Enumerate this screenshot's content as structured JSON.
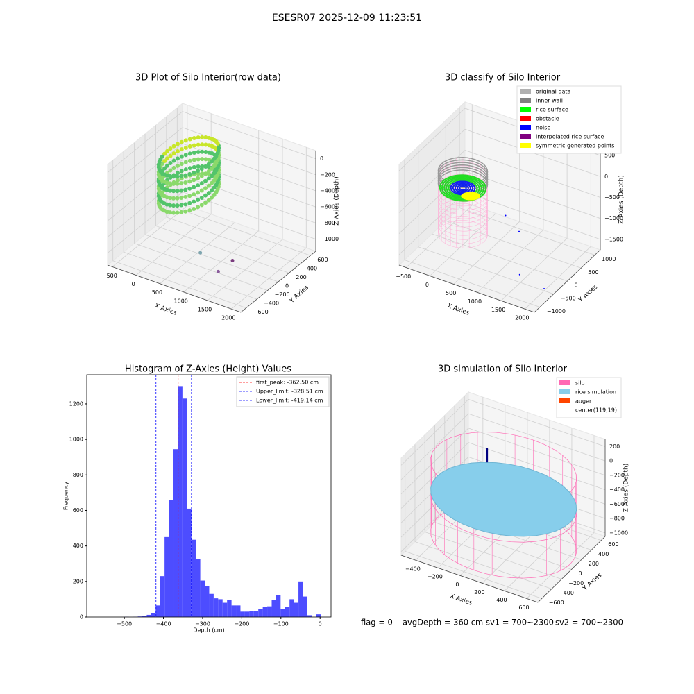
{
  "title": "ESESR07 2025-12-09 11:23:51",
  "chart_data": [
    {
      "type": "scatter3d",
      "title": "3D Plot of Silo Interior(row data)",
      "xlabel": "X Axies",
      "ylabel": "Y Axies",
      "zlabel": "Z Axies (Depth)",
      "xlim": [
        -600,
        2200
      ],
      "xticks": [
        {
          "value": -500,
          "label": "−500"
        },
        0,
        500,
        1000,
        1500,
        2000
      ],
      "ylim": [
        -700,
        700
      ],
      "yticks": [
        {
          "value": -600,
          "label": "−600"
        },
        {
          "value": -400,
          "label": "−400"
        },
        {
          "value": -200,
          "label": "−200"
        },
        0,
        200,
        400,
        600
      ],
      "zlim": [
        -1150,
        100
      ],
      "zticks": [
        {
          "value": -1000,
          "label": "−1000"
        },
        {
          "value": -800,
          "label": "−800"
        },
        {
          "value": -600,
          "label": "−600"
        },
        {
          "value": -400,
          "label": "−400"
        },
        {
          "value": -200,
          "label": "−200"
        },
        0
      ]
    },
    {
      "type": "scatter3d",
      "title": "3D classify of Silo Interior",
      "xlabel": "X Axies",
      "ylabel": "Y Axies",
      "zlabel": "Z Axies (Depth)",
      "xlim": [
        -650,
        2200
      ],
      "xticks": [
        {
          "value": -500,
          "label": "−500"
        },
        0,
        500,
        1000,
        1500,
        2000
      ],
      "ylim": [
        -1200,
        1200
      ],
      "yticks": [
        {
          "value": -1000,
          "label": "−1000"
        },
        {
          "value": -500,
          "label": "−500"
        },
        0,
        500,
        1000
      ],
      "zlim": [
        -1750,
        650
      ],
      "zticks": [
        {
          "value": -1500,
          "label": "−1500"
        },
        {
          "value": -1000,
          "label": "−1000"
        },
        {
          "value": -500,
          "label": "−500"
        },
        0,
        500
      ],
      "legend": [
        {
          "name": "original data",
          "color": "#b0b0b0"
        },
        {
          "name": "inner wall",
          "color": "#808080"
        },
        {
          "name": "rice surface",
          "color": "#00ff00"
        },
        {
          "name": "obstacle",
          "color": "#ff0000"
        },
        {
          "name": "noise",
          "color": "#0000ff"
        },
        {
          "name": "interpolated rice surface",
          "color": "#800080"
        },
        {
          "name": "symmetric generated points",
          "color": "#ffff00"
        }
      ]
    },
    {
      "type": "histogram",
      "title": "Histogram of Z-Axies (Height) Values",
      "xlabel": "Depth (cm)",
      "ylabel": "Frequency",
      "color": "#4d4dff",
      "bins": [
        -579.6,
        -568.2,
        -556.8,
        -545.4,
        -534,
        -522.6,
        -511.2,
        -499.8,
        -488.4,
        -477,
        -465.6,
        -454.2,
        -442.8,
        -431.4,
        -420,
        -408.6,
        -397.2,
        -385.8,
        -374.4,
        -363,
        -351.6,
        -340.2,
        -328.8,
        -317.4,
        -306,
        -294.6,
        -283.2,
        -271.8,
        -260.4,
        -249,
        -237.6,
        -226.2,
        -214.8,
        -203.4,
        -192,
        -180.6,
        -169.2,
        -157.8,
        -146.4,
        -135,
        -123.6,
        -112.2,
        -100.8,
        -89.4,
        -78,
        -66.6,
        -55.2,
        -43.8,
        -32.4,
        -21,
        -9.6,
        1.8
      ],
      "values": [
        0,
        0,
        0,
        0,
        0,
        0,
        0,
        1,
        0,
        1,
        3,
        5,
        12,
        20,
        65,
        230,
        450,
        660,
        945,
        1300,
        1230,
        610,
        435,
        325,
        205,
        175,
        130,
        105,
        100,
        80,
        95,
        65,
        65,
        30,
        30,
        35,
        35,
        45,
        55,
        60,
        95,
        125,
        45,
        55,
        100,
        80,
        200,
        115,
        10,
        0,
        15
      ],
      "xlim": [
        -596,
        28
      ],
      "xticks": [
        {
          "value": -500,
          "label": "−500"
        },
        {
          "value": -400,
          "label": "−400"
        },
        {
          "value": -300,
          "label": "−300"
        },
        {
          "value": -200,
          "label": "−200"
        },
        {
          "value": -100,
          "label": "−100"
        },
        0
      ],
      "ylim": [
        0,
        1364
      ],
      "yticks": [
        0,
        200,
        400,
        600,
        800,
        1000,
        1200
      ],
      "lines": [
        {
          "name": "first_peak: -362.50 cm",
          "value": -362.5,
          "color": "#ff0000"
        },
        {
          "name": "Upper_limit: -328.51 cm",
          "value": -328.51,
          "color": "#0000ff"
        },
        {
          "name": "Lower_limit: -419.14 cm",
          "value": -419.14,
          "color": "#0000ff"
        }
      ]
    },
    {
      "type": "scatter3d",
      "title": "3D simulation of Silo Interior",
      "xlabel": "X Axies",
      "ylabel": "Y Axies",
      "zlabel": "Z Axies (Depth)",
      "xlim": [
        -530,
        700
      ],
      "xticks": [
        {
          "value": -400,
          "label": "−400"
        },
        {
          "value": -200,
          "label": "−200"
        },
        0,
        200,
        400,
        600
      ],
      "ylim": [
        -680,
        680
      ],
      "yticks": [
        {
          "value": -600,
          "label": "−600"
        },
        {
          "value": -400,
          "label": "−400"
        },
        {
          "value": -200,
          "label": "−200"
        },
        0,
        200,
        400,
        600
      ],
      "zlim": [
        -1050,
        300
      ],
      "zticks": [
        {
          "value": -1000,
          "label": "−1000"
        },
        {
          "value": -800,
          "label": "−800"
        },
        {
          "value": -600,
          "label": "−600"
        },
        {
          "value": -400,
          "label": "−400"
        },
        {
          "value": -200,
          "label": "−200"
        },
        0,
        200
      ],
      "legend": [
        {
          "name": "silo",
          "color": "#ff69b4"
        },
        {
          "name": "rice simulation",
          "color": "#87ceeb"
        },
        {
          "name": "auger",
          "color": "#ff4500"
        },
        {
          "name": "center(119,19)",
          "color": "#ffffff"
        }
      ]
    }
  ],
  "status": [
    "flag = 0",
    "avgDepth = 360 cm",
    "sv1 = 700~2300",
    "sv2 = 700~2300"
  ]
}
